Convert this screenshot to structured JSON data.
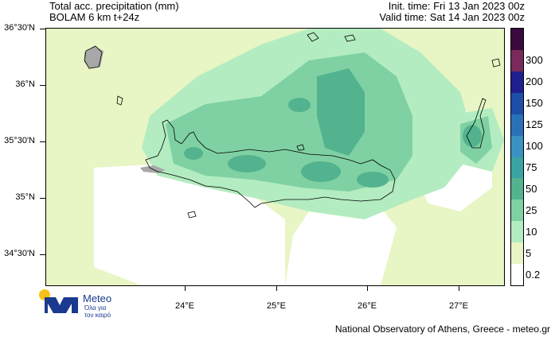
{
  "header": {
    "title_line1": "Total acc. precipitation (mm)",
    "title_line2": "BOLAM 6 km t+24z",
    "init_time": "Init. time: Fri 13 Jan 2023 00z",
    "valid_time": "Valid time: Sat 14 Jan 2023 00z"
  },
  "map": {
    "lat_labels": [
      "36°30'N",
      "36°N",
      "35°30'N",
      "35°N",
      "34°30'N"
    ],
    "lon_labels": [
      "24°E",
      "25°E",
      "26°E",
      "27°E"
    ],
    "colors": {
      "land_outline": "#000000",
      "no_data_grey": "#a8a8a8"
    }
  },
  "legend": {
    "levels": [
      {
        "label": "",
        "color": "#3a0a3f"
      },
      {
        "label": "300",
        "color": "#7a2a5a"
      },
      {
        "label": "200",
        "color": "#1f1f8f"
      },
      {
        "label": "150",
        "color": "#1d4fa8"
      },
      {
        "label": "125",
        "color": "#2a72b8"
      },
      {
        "label": "100",
        "color": "#3a92c2"
      },
      {
        "label": "75",
        "color": "#3aa3a3"
      },
      {
        "label": "50",
        "color": "#52b38e"
      },
      {
        "label": "25",
        "color": "#7fd1a3"
      },
      {
        "label": "10",
        "color": "#b3ecc0"
      },
      {
        "label": "5",
        "color": "#e8f5c4"
      },
      {
        "label": "0.2",
        "color": "#ffffff"
      }
    ]
  },
  "logo": {
    "name": "Meteo",
    "tagline_line1": "Όλα για",
    "tagline_line2": "τον καιρό",
    "colors": {
      "sun": "#f6c21a",
      "mark": "#1a3a8f"
    }
  },
  "footer": "National Observatory of Athens, Greece - meteo.gr"
}
